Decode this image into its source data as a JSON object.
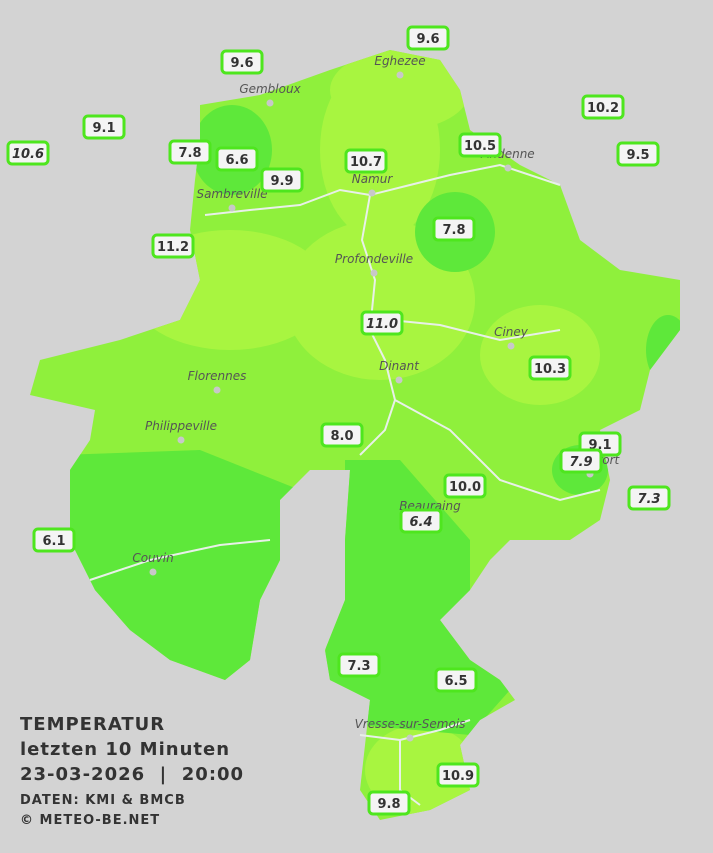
{
  "legend": {
    "title": "TEMPERATUR",
    "period": "letzten 10 Minuten",
    "datetime": "23-03-2026  |  20:00",
    "source": "DATEN: KMI & BMCB",
    "copyright": "© METEO-BE.NET"
  },
  "cities": [
    "Eghezee",
    "Gembloux",
    "Andenne",
    "Namur",
    "Sambreville",
    "Profondeville",
    "Ciney",
    "Florennes",
    "Dinant",
    "Philippeville",
    "Beauraing",
    "Rochefort",
    "Couvin",
    "Vresse-sur-Semois"
  ],
  "stations": [
    {
      "label": "9.6"
    },
    {
      "label": "9.6"
    },
    {
      "label": "9.1"
    },
    {
      "label": "10.6",
      "italic": true
    },
    {
      "label": "7.8"
    },
    {
      "label": "6.6"
    },
    {
      "label": "9.9"
    },
    {
      "label": "10.7"
    },
    {
      "label": "10.5"
    },
    {
      "label": "10.2"
    },
    {
      "label": "9.5"
    },
    {
      "label": "7.8"
    },
    {
      "label": "11.2"
    },
    {
      "label": "11.0",
      "italic": true
    },
    {
      "label": "10.3"
    },
    {
      "label": "8.0"
    },
    {
      "label": "9.1"
    },
    {
      "label": "7.9",
      "italic": true
    },
    {
      "label": "7.3",
      "italic": true
    },
    {
      "label": "10.0"
    },
    {
      "label": "6.4",
      "italic": true
    },
    {
      "label": "6.1"
    },
    {
      "label": "7.3"
    },
    {
      "label": "6.5"
    },
    {
      "label": "10.9"
    },
    {
      "label": "9.8"
    }
  ]
}
